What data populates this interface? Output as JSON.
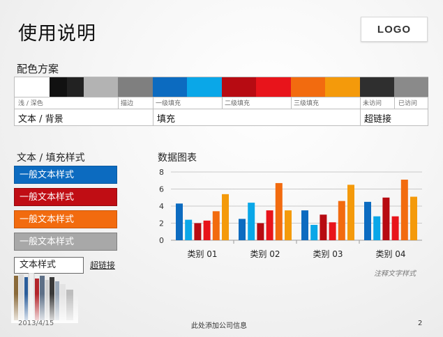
{
  "page": {
    "title": "使用说明",
    "logo": "LOGO"
  },
  "scheme": {
    "title": "配色方案",
    "colors": {
      "white": "#FFFFFF",
      "black1": "#111111",
      "black2": "#222222",
      "gray1": "#B3B3B3",
      "gray2": "#7F7F7F",
      "blue1": "#0C6BC0",
      "blue2": "#0AA7E8",
      "red1": "#B70B12",
      "red2": "#E8141B",
      "orange1": "#F26B0F",
      "orange2": "#F49A0B",
      "dark": "#2F2F2F",
      "visited": "#8A8A8A"
    },
    "small_labels": {
      "light_dark": "浅 / 深色",
      "stroke": "描边",
      "fill1": "一级填充",
      "fill2": "二级填充",
      "fill3": "三级填充",
      "unvisited": "未访问",
      "visited": "已访问"
    },
    "big_labels": {
      "text_bg": "文本 / 背景",
      "fill": "填充",
      "hyperlink": "超链接"
    }
  },
  "styles": {
    "title": "文本 / 填充样式",
    "boxes": [
      "一般文本样式",
      "一般文本样式",
      "一般文本样式",
      "一般文本样式"
    ],
    "text_style": "文本样式",
    "hyperlink": "超链接"
  },
  "chart": {
    "title": "数据图表",
    "caption": "注释文字样式"
  },
  "chart_data": {
    "type": "bar",
    "categories": [
      "类别 01",
      "类别 02",
      "类别 03",
      "类别 04"
    ],
    "ylim": [
      0,
      8
    ],
    "yticks": [
      "0",
      "2",
      "4",
      "6",
      "8"
    ],
    "grid": true,
    "series": [
      {
        "values": [
          4.3,
          2.5,
          3.5,
          4.5
        ],
        "color": "#0C6BC0"
      },
      {
        "values": [
          2.4,
          4.4,
          1.8,
          2.8
        ],
        "color": "#0AA7E8"
      },
      {
        "values": [
          2.0,
          2.0,
          3.0,
          5.0
        ],
        "color": "#B70B12"
      },
      {
        "values": [
          2.3,
          3.5,
          2.1,
          2.8
        ],
        "color": "#E8141B"
      },
      {
        "values": [
          3.4,
          6.7,
          4.6,
          7.1
        ],
        "color": "#F26B0F"
      },
      {
        "values": [
          5.4,
          3.5,
          6.5,
          5.1
        ],
        "color": "#F49A0B"
      }
    ]
  },
  "footer": {
    "date": "2013/4/15",
    "company": "此处添加公司信息",
    "page": "2"
  }
}
